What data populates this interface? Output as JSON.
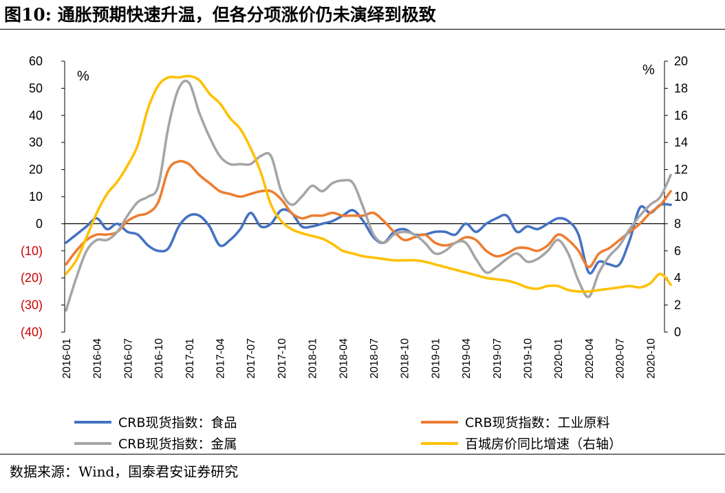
{
  "header": {
    "title": "图10: 通胀预期快速升温，但各分项涨价仍未演绎到极致"
  },
  "footer": {
    "source": "数据来源：Wind，国泰君安证券研究"
  },
  "chart_data": {
    "type": "line",
    "title": "图10: 通胀预期快速升温，但各分项涨价仍未演绎到极致",
    "xlabel": "",
    "ylabel": "%",
    "ylabel_right": "%",
    "x": [
      "2016-01",
      "2016-02",
      "2016-03",
      "2016-04",
      "2016-05",
      "2016-06",
      "2016-07",
      "2016-08",
      "2016-09",
      "2016-10",
      "2016-11",
      "2016-12",
      "2017-01",
      "2017-02",
      "2017-03",
      "2017-04",
      "2017-05",
      "2017-06",
      "2017-07",
      "2017-08",
      "2017-09",
      "2017-10",
      "2017-11",
      "2017-12",
      "2018-01",
      "2018-02",
      "2018-03",
      "2018-04",
      "2018-05",
      "2018-06",
      "2018-07",
      "2018-08",
      "2018-09",
      "2018-10",
      "2018-11",
      "2018-12",
      "2019-01",
      "2019-02",
      "2019-03",
      "2019-04",
      "2019-05",
      "2019-06",
      "2019-07",
      "2019-08",
      "2019-09",
      "2019-10",
      "2019-11",
      "2019-12",
      "2020-01",
      "2020-02",
      "2020-03",
      "2020-04",
      "2020-05",
      "2020-06",
      "2020-07",
      "2020-08",
      "2020-09",
      "2020-10",
      "2020-11",
      "2020-12"
    ],
    "x_tick_labels": [
      "2016-01",
      "2016-04",
      "2016-07",
      "2016-10",
      "2017-01",
      "2017-04",
      "2017-07",
      "2017-10",
      "2018-01",
      "2018-04",
      "2018-07",
      "2018-10",
      "2019-01",
      "2019-04",
      "2019-07",
      "2019-10",
      "2020-01",
      "2020-04",
      "2020-07",
      "2020-10"
    ],
    "ylim_left": [
      -40,
      60
    ],
    "ylim_right": [
      0,
      20
    ],
    "y_ticks_left": [
      {
        "value": 60,
        "label": "60"
      },
      {
        "value": 50,
        "label": "50"
      },
      {
        "value": 40,
        "label": "40"
      },
      {
        "value": 30,
        "label": "30"
      },
      {
        "value": 20,
        "label": "20"
      },
      {
        "value": 10,
        "label": "10"
      },
      {
        "value": 0,
        "label": "0"
      },
      {
        "value": -10,
        "label": "(10)"
      },
      {
        "value": -20,
        "label": "(20)"
      },
      {
        "value": -30,
        "label": "(30)"
      },
      {
        "value": -40,
        "label": "(40)"
      }
    ],
    "y_ticks_right": [
      {
        "value": 20,
        "label": "20"
      },
      {
        "value": 18,
        "label": "18"
      },
      {
        "value": 16,
        "label": "16"
      },
      {
        "value": 14,
        "label": "14"
      },
      {
        "value": 12,
        "label": "12"
      },
      {
        "value": 10,
        "label": "10"
      },
      {
        "value": 8,
        "label": "8"
      },
      {
        "value": 6,
        "label": "6"
      },
      {
        "value": 4,
        "label": "4"
      },
      {
        "value": 2,
        "label": "2"
      },
      {
        "value": 0,
        "label": "0"
      }
    ],
    "negative_label_color": "#cc0000",
    "grid": false,
    "zero_line": true,
    "legend_position": "bottom",
    "series": [
      {
        "name": "CRB现货指数：食品",
        "color": "#4472c4",
        "axis": "left",
        "values": [
          -7,
          -4,
          -1,
          2,
          -2,
          0,
          -3,
          -4,
          -8,
          -10,
          -9,
          -1,
          3,
          3,
          -1,
          -8,
          -6,
          -2,
          4,
          -1,
          0,
          5,
          4,
          -1,
          -1,
          0,
          1,
          3,
          5,
          1,
          -5,
          -7,
          -3,
          -2,
          -4,
          -4,
          -3,
          -3,
          -4,
          0,
          -3,
          0,
          2,
          3,
          -3,
          -1,
          -2,
          0,
          2,
          1,
          -4,
          -18,
          -14,
          -15,
          -15,
          -6,
          6,
          4,
          7,
          7
        ]
      },
      {
        "name": "CRB现货指数：工业原料",
        "color": "#ed7d31",
        "axis": "left",
        "values": [
          -15,
          -10,
          -6,
          -4,
          -4,
          -3,
          1,
          3,
          4,
          8,
          20,
          23,
          22,
          18,
          15,
          12,
          11,
          10,
          11,
          12,
          12,
          9,
          4,
          2,
          3,
          3,
          4,
          3,
          3,
          3,
          4,
          1,
          -3,
          -6,
          -5,
          -4,
          -7,
          -8,
          -7,
          -5,
          -6,
          -10,
          -12,
          -11,
          -9,
          -9,
          -10,
          -8,
          -4,
          -6,
          -10,
          -16,
          -11,
          -9,
          -6,
          -3,
          0,
          4,
          7,
          12
        ]
      },
      {
        "name": "CRB现货指数：金属",
        "color": "#a5a5a5",
        "axis": "left",
        "values": [
          -32,
          -20,
          -10,
          -6,
          -6,
          -3,
          3,
          8,
          10,
          14,
          36,
          50,
          52,
          41,
          32,
          25,
          22,
          22,
          22,
          25,
          25,
          12,
          7,
          10,
          14,
          12,
          15,
          16,
          15,
          6,
          -4,
          -7,
          -4,
          -3,
          -4,
          -7,
          -11,
          -10,
          -7,
          -7,
          -13,
          -18,
          -16,
          -13,
          -11,
          -14,
          -13,
          -10,
          -6,
          -11,
          -21,
          -27,
          -18,
          -12,
          -8,
          -2,
          3,
          7,
          10,
          18
        ]
      },
      {
        "name": "百城房价同比增速（右轴）",
        "color": "#ffc000",
        "axis": "right",
        "values": [
          4.3,
          5.3,
          7.0,
          8.8,
          10.2,
          11.1,
          12.3,
          13.8,
          16.5,
          18.2,
          18.8,
          18.8,
          18.9,
          18.6,
          17.6,
          16.9,
          15.8,
          15.0,
          13.6,
          11.8,
          9.4,
          8.2,
          7.6,
          7.3,
          7.1,
          6.9,
          6.5,
          6.0,
          5.8,
          5.6,
          5.5,
          5.4,
          5.3,
          5.3,
          5.3,
          5.2,
          5.0,
          4.8,
          4.6,
          4.4,
          4.2,
          4.0,
          3.9,
          3.8,
          3.6,
          3.3,
          3.2,
          3.4,
          3.4,
          3.1,
          3.0,
          3.0,
          3.1,
          3.2,
          3.3,
          3.4,
          3.3,
          3.6,
          4.3,
          3.5
        ]
      }
    ]
  }
}
